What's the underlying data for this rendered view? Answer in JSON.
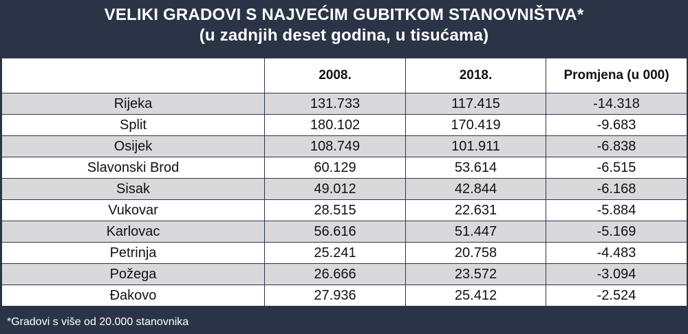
{
  "title": {
    "line1": "VELIKI GRADOVI S NAJVEĆIM GUBITKOM STANOVNIŠTVA*",
    "line2": "(u zadnjih deset godina, u tisućama)"
  },
  "table": {
    "headers": [
      "",
      "2008.",
      "2018.",
      "Promjena (u 000)"
    ],
    "rows": [
      {
        "city": "Rijeka",
        "y2008": "131.733",
        "y2018": "117.415",
        "change": "-14.318"
      },
      {
        "city": "Split",
        "y2008": "180.102",
        "y2018": "170.419",
        "change": "-9.683"
      },
      {
        "city": "Osijek",
        "y2008": "108.749",
        "y2018": "101.911",
        "change": "-6.838"
      },
      {
        "city": "Slavonski Brod",
        "y2008": "60.129",
        "y2018": "53.614",
        "change": "-6.515"
      },
      {
        "city": "Sisak",
        "y2008": "49.012",
        "y2018": "42.844",
        "change": "-6.168"
      },
      {
        "city": "Vukovar",
        "y2008": "28.515",
        "y2018": "22.631",
        "change": "-5.884"
      },
      {
        "city": "Karlovac",
        "y2008": "56.616",
        "y2018": "51.447",
        "change": "-5.169"
      },
      {
        "city": "Petrinja",
        "y2008": "25.241",
        "y2018": "20.758",
        "change": "-4.483"
      },
      {
        "city": "Požega",
        "y2008": "26.666",
        "y2018": "23.572",
        "change": "-3.094"
      },
      {
        "city": "Đakovo",
        "y2008": "27.936",
        "y2018": "25.412",
        "change": "-2.524"
      }
    ]
  },
  "footnote": "*Gradovi s više od 20.000 stanovnika",
  "colors": {
    "background": "#2b3446",
    "row_shaded": "#d9d9dc",
    "row_plain": "#ffffff"
  }
}
